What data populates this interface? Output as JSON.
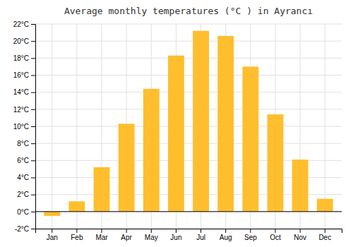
{
  "chart_data": {
    "type": "bar",
    "title": "Average monthly temperatures (°C ) in Ayrancı",
    "categories": [
      "Jan",
      "Feb",
      "Mar",
      "Apr",
      "May",
      "Jun",
      "Jul",
      "Aug",
      "Sep",
      "Oct",
      "Nov",
      "Dec"
    ],
    "values": [
      -0.5,
      1.2,
      5.2,
      10.3,
      14.4,
      18.3,
      21.2,
      20.6,
      17.0,
      11.4,
      6.1,
      1.5
    ],
    "color": "#FFBE2D",
    "ylim": [
      -2,
      22
    ],
    "yticks": [
      {
        "value": -2,
        "label": "-2°C"
      },
      {
        "value": 0,
        "label": "0°C"
      },
      {
        "value": 2,
        "label": "2°C"
      },
      {
        "value": 4,
        "label": "4°C"
      },
      {
        "value": 6,
        "label": "6°C"
      },
      {
        "value": 8,
        "label": "8°C"
      },
      {
        "value": 10,
        "label": "10°C"
      },
      {
        "value": 12,
        "label": "12°C"
      },
      {
        "value": 14,
        "label": "14°C"
      },
      {
        "value": 16,
        "label": "16°C"
      },
      {
        "value": 18,
        "label": "18°C"
      },
      {
        "value": 20,
        "label": "20°C"
      },
      {
        "value": 22,
        "label": "22°C"
      }
    ],
    "grid": true
  }
}
